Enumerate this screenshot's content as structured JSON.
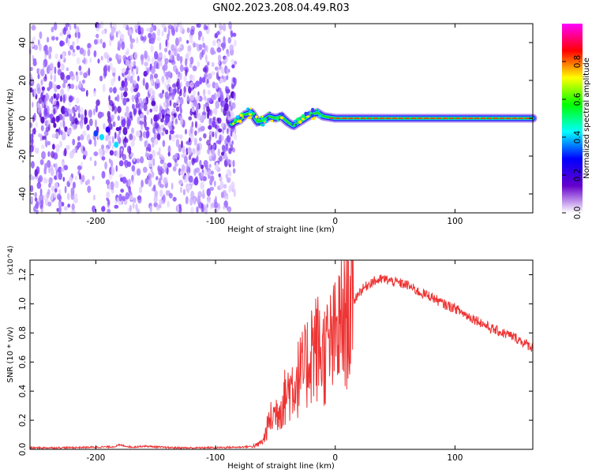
{
  "title": "GN02.2023.208.04.49.R03",
  "chart_data": [
    {
      "type": "heatmap",
      "title": "GN02.2023.208.04.49.R03",
      "xlabel": "Height of straight line (km)",
      "ylabel": "Frequency (Hz)",
      "xlim": [
        -255,
        165
      ],
      "ylim": [
        -50,
        50
      ],
      "x_ticks": [
        -200,
        -100,
        0,
        100
      ],
      "x_tick_labels": [
        "-200",
        "-100",
        "0",
        "100"
      ],
      "y_ticks": [
        -40,
        -20,
        0,
        20,
        40
      ],
      "y_tick_labels": [
        "-40",
        "-20",
        "0",
        "20",
        "40"
      ],
      "colorbar": {
        "label": "Normalized spectral amplitude",
        "range": [
          0,
          1
        ],
        "ticks": [
          0.0,
          0.2,
          0.4,
          0.6,
          0.8
        ],
        "tick_labels": [
          "0.0",
          "0.2",
          "0.4",
          "0.6",
          "0.8"
        ],
        "colormap": [
          "#ffffff",
          "#6600cc",
          "#0000ff",
          "#00ffff",
          "#00ff00",
          "#ffff00",
          "#ff0000",
          "#ff00ff"
        ]
      },
      "noise_region_x": [
        -255,
        -83
      ],
      "signal_trace": {
        "x": [
          -87,
          -80,
          -75,
          -70,
          -65,
          -60,
          -55,
          -50,
          -45,
          -40,
          -35,
          -30,
          -25,
          -20,
          -15,
          -10,
          0,
          50,
          100,
          165
        ],
        "y": [
          -3,
          -1,
          2,
          3,
          -2,
          -1,
          1,
          0,
          1,
          -2,
          -4,
          -2,
          0,
          2,
          3,
          1,
          0,
          0,
          0,
          0
        ]
      },
      "grid": false
    },
    {
      "type": "line",
      "xlabel": "Height of straight line (km)",
      "ylabel": "SNR (10 * v/v)",
      "y_multiplier": "(x10^4)",
      "xlim": [
        -255,
        165
      ],
      "ylim": [
        0,
        1.3
      ],
      "x_ticks": [
        -200,
        -100,
        0,
        100
      ],
      "x_tick_labels": [
        "-200",
        "-100",
        "0",
        "100"
      ],
      "y_ticks": [
        0.0,
        0.2,
        0.4,
        0.6,
        0.8,
        1.0,
        1.2
      ],
      "y_tick_labels": [
        "0.0",
        "0.2",
        "0.4",
        "0.6",
        "0.8",
        "1.0",
        "1.2"
      ],
      "color": "#ee3333",
      "series": [
        {
          "x": [
            -255,
            -220,
            -200,
            -185,
            -180,
            -170,
            -160,
            -140,
            -120,
            -100,
            -80,
            -70,
            -65,
            -60,
            -55,
            -50,
            -45,
            -40,
            -35,
            -30,
            -25,
            -20,
            -15,
            -10,
            -5,
            0,
            10,
            20,
            30,
            40,
            50,
            60,
            70,
            80,
            90,
            100,
            110,
            120,
            130,
            140,
            150,
            160,
            165
          ],
          "y": [
            0.01,
            0.012,
            0.015,
            0.018,
            0.03,
            0.015,
            0.022,
            0.012,
            0.01,
            0.012,
            0.015,
            0.02,
            0.03,
            0.06,
            0.2,
            0.25,
            0.3,
            0.4,
            0.45,
            0.5,
            0.55,
            0.7,
            0.7,
            0.65,
            0.7,
            0.75,
            0.95,
            1.08,
            1.15,
            1.17,
            1.15,
            1.13,
            1.08,
            1.05,
            1.0,
            0.97,
            0.92,
            0.88,
            0.83,
            0.8,
            0.77,
            0.72,
            0.7
          ]
        }
      ],
      "grid": false
    }
  ]
}
